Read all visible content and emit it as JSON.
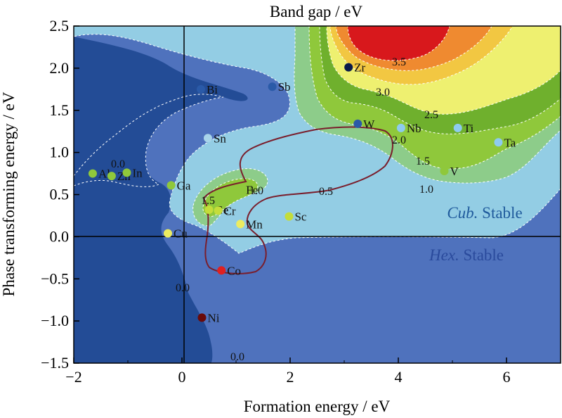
{
  "chart_data": {
    "type": "scatter",
    "title": "Band gap / eV",
    "xlabel": "Formation energy / eV",
    "ylabel": "Phase transforming energy / eV",
    "xlim": [
      -2.0,
      7.0
    ],
    "ylim": [
      -1.5,
      2.5
    ],
    "x_ticks": [
      "−2",
      "0",
      "2",
      "4",
      "6"
    ],
    "y_ticks": [
      "2.5",
      "2.0",
      "1.5",
      "1.0",
      "0.5",
      "0.0",
      "−0.5",
      "−1.0",
      "−1.5"
    ],
    "grid": false,
    "colors": {
      "level_0": "#234c96",
      "level_0_0": "#4f72bd",
      "level_0_5": "#93cde4",
      "level_1_0": "#8dcc8a",
      "level_1_5": "#8fc83b",
      "level_2_0": "#6fb02d",
      "level_2_5": "#eef070",
      "level_3_0": "#f2c742",
      "level_3_5": "#ef8a30",
      "level_4_0": "#d8181c",
      "boundary": "#7a1e2c"
    },
    "contour_labels": [
      "0.0",
      "0.0",
      "0.0",
      "0.5",
      "1.0",
      "1.0",
      "1.5",
      "1.5",
      "2.0",
      "2.5",
      "3.0",
      "3.5"
    ],
    "region_labels": [
      {
        "italic": "Cub.",
        "text": " Stable"
      },
      {
        "italic": "Hex.",
        "text": " Stable"
      }
    ],
    "points": [
      {
        "label": "Zr",
        "x": 3.08,
        "y": 2.01,
        "color": "#0a1a4a"
      },
      {
        "label": "Bi",
        "x": 0.35,
        "y": 1.75,
        "color": "#2a5aa8"
      },
      {
        "label": "Sb",
        "x": 1.67,
        "y": 1.78,
        "color": "#2a5aa8"
      },
      {
        "label": "Sn",
        "x": 0.48,
        "y": 1.17,
        "color": "#a8d4ea"
      },
      {
        "label": "W",
        "x": 3.25,
        "y": 1.34,
        "color": "#2a5aa8"
      },
      {
        "label": "Nb",
        "x": 4.05,
        "y": 1.29,
        "color": "#8ecbf0"
      },
      {
        "label": "Ti",
        "x": 5.1,
        "y": 1.29,
        "color": "#8ecbf0"
      },
      {
        "label": "Ta",
        "x": 5.85,
        "y": 1.12,
        "color": "#8ecbf0"
      },
      {
        "label": "V",
        "x": 4.85,
        "y": 0.78,
        "color": "#8fc83b"
      },
      {
        "label": "Al",
        "x": -1.65,
        "y": 0.75,
        "color": "#8fc83b"
      },
      {
        "label": "Zn",
        "x": -1.3,
        "y": 0.72,
        "color": "#8fc83b"
      },
      {
        "label": "In",
        "x": -1.02,
        "y": 0.76,
        "color": "#8fc83b"
      },
      {
        "label": "Ga",
        "x": -0.2,
        "y": 0.61,
        "color": "#8fc83b"
      },
      {
        "label": "Fe",
        "x": 1.08,
        "y": 0.56,
        "color": "#8fc83b"
      },
      {
        "label": "Ge",
        "x": 0.5,
        "y": 0.32,
        "color": "#c4dd3a"
      },
      {
        "label": "Cr",
        "x": 0.67,
        "y": 0.31,
        "color": "#c4dd3a"
      },
      {
        "label": "Sc",
        "x": 1.98,
        "y": 0.24,
        "color": "#c4dd3a"
      },
      {
        "label": "Mn",
        "x": 1.08,
        "y": 0.15,
        "color": "#ecec60"
      },
      {
        "label": "Cu",
        "x": -0.26,
        "y": 0.04,
        "color": "#ecec60"
      },
      {
        "label": "Co",
        "x": 0.73,
        "y": -0.4,
        "color": "#e02020"
      },
      {
        "label": "Ni",
        "x": 0.37,
        "y": -0.96,
        "color": "#6a0a0a"
      }
    ]
  }
}
